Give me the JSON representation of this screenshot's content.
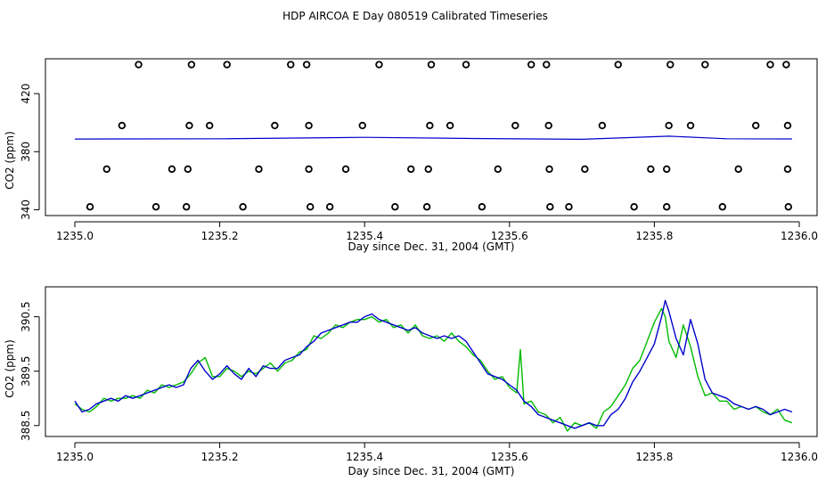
{
  "page_title": "HDP AIRCOA E  Day 080519  Calibrated Timeseries",
  "colors": {
    "frame": "#000000",
    "series_blue": "#0000cc",
    "series_green": "#00bb00",
    "markers": "#000000"
  },
  "chart_data": [
    {
      "type": "scatter",
      "xlabel": "Day since Dec. 31, 2004 (GMT)",
      "ylabel": "CO2 (ppm)",
      "xlim": [
        1235.0,
        1236.0
      ],
      "ylim": [
        336,
        444
      ],
      "x_ticks": [
        "1235.0",
        "1235.2",
        "1235.4",
        "1235.6",
        "1235.8",
        "1236.0"
      ],
      "y_ticks": [
        "340",
        "380",
        "420"
      ],
      "series": [
        {
          "marker": "circle",
          "points": [
            [
              1235.088,
              440
            ],
            [
              1235.161,
              440
            ],
            [
              1235.21,
              440
            ],
            [
              1235.298,
              440
            ],
            [
              1235.32,
              440
            ],
            [
              1235.42,
              440
            ],
            [
              1235.492,
              440
            ],
            [
              1235.54,
              440
            ],
            [
              1235.63,
              440
            ],
            [
              1235.651,
              440
            ],
            [
              1235.75,
              440
            ],
            [
              1235.822,
              440
            ],
            [
              1235.87,
              440
            ],
            [
              1235.96,
              440
            ],
            [
              1235.982,
              440
            ],
            [
              1235.065,
              398
            ],
            [
              1235.158,
              398
            ],
            [
              1235.186,
              398
            ],
            [
              1235.276,
              398
            ],
            [
              1235.323,
              398
            ],
            [
              1235.397,
              398
            ],
            [
              1235.49,
              398
            ],
            [
              1235.518,
              398
            ],
            [
              1235.608,
              398
            ],
            [
              1235.654,
              398
            ],
            [
              1235.728,
              398
            ],
            [
              1235.82,
              398
            ],
            [
              1235.85,
              398
            ],
            [
              1235.94,
              398
            ],
            [
              1235.984,
              398
            ],
            [
              1235.044,
              368
            ],
            [
              1235.134,
              368
            ],
            [
              1235.156,
              368
            ],
            [
              1235.254,
              368
            ],
            [
              1235.323,
              368
            ],
            [
              1235.374,
              368
            ],
            [
              1235.464,
              368
            ],
            [
              1235.488,
              368
            ],
            [
              1235.584,
              368
            ],
            [
              1235.655,
              368
            ],
            [
              1235.704,
              368
            ],
            [
              1235.795,
              368
            ],
            [
              1235.817,
              368
            ],
            [
              1235.916,
              368
            ],
            [
              1235.984,
              368
            ],
            [
              1235.021,
              342
            ],
            [
              1235.112,
              342
            ],
            [
              1235.154,
              342
            ],
            [
              1235.232,
              342
            ],
            [
              1235.325,
              342
            ],
            [
              1235.352,
              342
            ],
            [
              1235.442,
              342
            ],
            [
              1235.486,
              342
            ],
            [
              1235.562,
              342
            ],
            [
              1235.656,
              342
            ],
            [
              1235.682,
              342
            ],
            [
              1235.772,
              342
            ],
            [
              1235.817,
              342
            ],
            [
              1235.894,
              342
            ],
            [
              1235.985,
              342
            ]
          ]
        },
        {
          "marker": "line",
          "points": [
            [
              1235.0,
              388.7
            ],
            [
              1235.2,
              388.9
            ],
            [
              1235.4,
              389.9
            ],
            [
              1235.55,
              389.1
            ],
            [
              1235.7,
              388.5
            ],
            [
              1235.82,
              390.7
            ],
            [
              1235.9,
              388.9
            ],
            [
              1235.99,
              388.8
            ]
          ]
        }
      ]
    },
    {
      "type": "line",
      "xlabel": "Day since Dec. 31, 2004 (GMT)",
      "ylabel": "CO2 (ppm)",
      "xlim": [
        1235.0,
        1236.0
      ],
      "ylim": [
        388.3,
        391.05
      ],
      "x_ticks": [
        "1235.0",
        "1235.2",
        "1235.4",
        "1235.6",
        "1235.8",
        "1236.0"
      ],
      "y_ticks": [
        "388.5",
        "389.5",
        "390.5"
      ],
      "series": [
        {
          "color": "#0000cc",
          "x": [
            1235.0,
            1235.01,
            1235.02,
            1235.03,
            1235.04,
            1235.05,
            1235.06,
            1235.07,
            1235.08,
            1235.09,
            1235.1,
            1235.11,
            1235.12,
            1235.13,
            1235.14,
            1235.15,
            1235.16,
            1235.17,
            1235.18,
            1235.19,
            1235.2,
            1235.21,
            1235.22,
            1235.23,
            1235.24,
            1235.25,
            1235.26,
            1235.27,
            1235.28,
            1235.29,
            1235.3,
            1235.31,
            1235.32,
            1235.33,
            1235.34,
            1235.35,
            1235.36,
            1235.37,
            1235.38,
            1235.39,
            1235.4,
            1235.41,
            1235.42,
            1235.43,
            1235.44,
            1235.45,
            1235.46,
            1235.47,
            1235.48,
            1235.49,
            1235.5,
            1235.51,
            1235.52,
            1235.53,
            1235.54,
            1235.55,
            1235.56,
            1235.57,
            1235.58,
            1235.59,
            1235.6,
            1235.61,
            1235.62,
            1235.63,
            1235.64,
            1235.65,
            1235.66,
            1235.67,
            1235.68,
            1235.69,
            1235.7,
            1235.71,
            1235.72,
            1235.73,
            1235.74,
            1235.75,
            1235.76,
            1235.77,
            1235.78,
            1235.79,
            1235.8,
            1235.81,
            1235.815,
            1235.82,
            1235.83,
            1235.84,
            1235.85,
            1235.86,
            1235.87,
            1235.88,
            1235.89,
            1235.9,
            1235.91,
            1235.92,
            1235.93,
            1235.94,
            1235.95,
            1235.96,
            1235.97,
            1235.98,
            1235.99
          ],
          "values": [
            388.95,
            388.75,
            388.8,
            388.9,
            388.95,
            389.0,
            388.95,
            389.05,
            389.0,
            389.05,
            389.1,
            389.15,
            389.2,
            389.25,
            389.2,
            389.25,
            389.55,
            389.7,
            389.5,
            389.35,
            389.45,
            389.6,
            389.45,
            389.35,
            389.55,
            389.4,
            389.6,
            389.55,
            389.55,
            389.7,
            389.75,
            389.8,
            389.95,
            390.05,
            390.2,
            390.25,
            390.3,
            390.35,
            390.4,
            390.4,
            390.5,
            390.55,
            390.45,
            390.4,
            390.35,
            390.3,
            390.25,
            390.3,
            390.2,
            390.15,
            390.1,
            390.15,
            390.1,
            390.15,
            390.05,
            389.85,
            389.65,
            389.45,
            389.4,
            389.35,
            389.25,
            389.15,
            388.95,
            388.85,
            388.7,
            388.65,
            388.6,
            388.55,
            388.5,
            388.45,
            388.5,
            388.55,
            388.5,
            388.5,
            388.7,
            388.8,
            389.0,
            389.3,
            389.5,
            389.75,
            390.0,
            390.5,
            390.8,
            390.6,
            390.1,
            389.8,
            390.45,
            390.0,
            389.35,
            389.1,
            389.05,
            389.0,
            388.9,
            388.85,
            388.8,
            388.85,
            388.8,
            388.7,
            388.75,
            388.8,
            388.75
          ]
        },
        {
          "color": "#00bb00",
          "x": [
            1235.0,
            1235.01,
            1235.02,
            1235.03,
            1235.04,
            1235.05,
            1235.06,
            1235.07,
            1235.08,
            1235.09,
            1235.1,
            1235.11,
            1235.12,
            1235.13,
            1235.14,
            1235.15,
            1235.16,
            1235.17,
            1235.18,
            1235.19,
            1235.2,
            1235.21,
            1235.22,
            1235.23,
            1235.24,
            1235.25,
            1235.26,
            1235.27,
            1235.28,
            1235.29,
            1235.3,
            1235.31,
            1235.32,
            1235.33,
            1235.34,
            1235.35,
            1235.36,
            1235.37,
            1235.38,
            1235.39,
            1235.4,
            1235.41,
            1235.42,
            1235.43,
            1235.44,
            1235.45,
            1235.46,
            1235.47,
            1235.48,
            1235.49,
            1235.5,
            1235.51,
            1235.52,
            1235.53,
            1235.54,
            1235.55,
            1235.56,
            1235.57,
            1235.58,
            1235.59,
            1235.6,
            1235.61,
            1235.615,
            1235.62,
            1235.63,
            1235.64,
            1235.65,
            1235.66,
            1235.67,
            1235.68,
            1235.69,
            1235.7,
            1235.71,
            1235.72,
            1235.73,
            1235.74,
            1235.75,
            1235.76,
            1235.77,
            1235.78,
            1235.79,
            1235.8,
            1235.81,
            1235.815,
            1235.82,
            1235.83,
            1235.84,
            1235.85,
            1235.86,
            1235.87,
            1235.88,
            1235.89,
            1235.9,
            1235.91,
            1235.92,
            1235.93,
            1235.94,
            1235.95,
            1235.96,
            1235.97,
            1235.98,
            1235.99
          ],
          "values": [
            388.9,
            388.8,
            388.75,
            388.85,
            389.0,
            388.95,
            389.0,
            389.0,
            389.05,
            389.0,
            389.15,
            389.1,
            389.25,
            389.2,
            389.25,
            389.3,
            389.45,
            389.65,
            389.75,
            389.4,
            389.4,
            389.55,
            389.5,
            389.4,
            389.5,
            389.45,
            389.55,
            389.65,
            389.5,
            389.65,
            389.7,
            389.85,
            389.9,
            390.15,
            390.1,
            390.2,
            390.35,
            390.3,
            390.4,
            390.45,
            390.45,
            390.5,
            390.4,
            390.45,
            390.3,
            390.35,
            390.2,
            390.35,
            390.15,
            390.1,
            390.15,
            390.05,
            390.2,
            390.05,
            389.95,
            389.8,
            389.7,
            389.5,
            389.35,
            389.4,
            389.2,
            389.1,
            389.9,
            388.9,
            388.95,
            388.75,
            388.7,
            388.55,
            388.65,
            388.4,
            388.55,
            388.5,
            388.55,
            388.45,
            388.75,
            388.85,
            389.05,
            389.25,
            389.55,
            389.7,
            390.05,
            390.4,
            390.65,
            390.5,
            390.05,
            389.75,
            390.35,
            389.95,
            389.4,
            389.05,
            389.1,
            388.95,
            388.95,
            388.8,
            388.85,
            388.8,
            388.85,
            388.75,
            388.7,
            388.8,
            388.6,
            388.55
          ]
        }
      ]
    }
  ]
}
